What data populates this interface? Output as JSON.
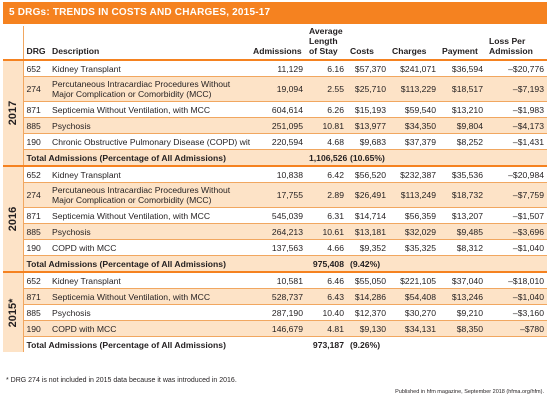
{
  "title": "5 DRGs: TRENDS IN COSTS AND CHARGES, 2015-17",
  "headers": {
    "drg": "DRG",
    "description": "Description",
    "admissions": "Admissions",
    "avg_stay_line1": "Average",
    "avg_stay_line2": "Length",
    "avg_stay_line3": "of Stay",
    "costs": "Costs",
    "charges": "Charges",
    "payment": "Payment",
    "loss_line1": "Loss Per",
    "loss_line2": "Admission"
  },
  "groups": [
    {
      "year": "2017",
      "rows": [
        {
          "drg": "652",
          "description": "Kidney Transplant",
          "admissions": "11,129",
          "stay": "6.16",
          "costs": "$57,370",
          "charges": "$241,071",
          "payment": "$36,594",
          "loss": "–$20,776"
        },
        {
          "drg": "274",
          "description": "Percutaneous Intracardiac Procedures Without Major Complication or Comorbidity (MCC)",
          "admissions": "19,094",
          "stay": "2.55",
          "costs": "$25,710",
          "charges": "$113,229",
          "payment": "$18,517",
          "loss": "–$7,193"
        },
        {
          "drg": "871",
          "description": "Septicemia Without Ventilation, with MCC",
          "admissions": "604,614",
          "stay": "6.26",
          "costs": "$15,193",
          "charges": "$59,540",
          "payment": "$13,210",
          "loss": "–$1,983"
        },
        {
          "drg": "885",
          "description": "Psychosis",
          "admissions": "251,095",
          "stay": "10.81",
          "costs": "$13,977",
          "charges": "$34,350",
          "payment": "$9,804",
          "loss": "–$4,173"
        },
        {
          "drg": "190",
          "description": "Chronic Obstructive Pulmonary Disease (COPD) with MCC",
          "admissions": "220,594",
          "stay": "4.68",
          "costs": "$9,683",
          "charges": "$37,379",
          "payment": "$8,252",
          "loss": "–$1,431"
        }
      ],
      "total_label": "Total Admissions (Percentage of All Admissions)",
      "total_value": "1,106,526",
      "total_pct": "(10.65%)"
    },
    {
      "year": "2016",
      "rows": [
        {
          "drg": "652",
          "description": "Kidney Transplant",
          "admissions": "10,838",
          "stay": "6.42",
          "costs": "$56,520",
          "charges": "$232,387",
          "payment": "$35,536",
          "loss": "–$20,984"
        },
        {
          "drg": "274",
          "description": "Percutaneous Intracardiac Procedures Without Major Complication or Comorbidity (MCC)",
          "admissions": "17,755",
          "stay": "2.89",
          "costs": "$26,491",
          "charges": "$113,249",
          "payment": "$18,732",
          "loss": "–$7,759"
        },
        {
          "drg": "871",
          "description": "Septicemia Without Ventilation, with MCC",
          "admissions": "545,039",
          "stay": "6.31",
          "costs": "$14,714",
          "charges": "$56,359",
          "payment": "$13,207",
          "loss": "–$1,507"
        },
        {
          "drg": "885",
          "description": "Psychosis",
          "admissions": "264,213",
          "stay": "10.61",
          "costs": "$13,181",
          "charges": "$32,029",
          "payment": "$9,485",
          "loss": "–$3,696"
        },
        {
          "drg": "190",
          "description": "COPD with MCC",
          "admissions": "137,563",
          "stay": "4.66",
          "costs": "$9,352",
          "charges": "$35,325",
          "payment": "$8,312",
          "loss": "–$1,040"
        }
      ],
      "total_label": "Total Admissions (Percentage of All Admissions)",
      "total_value": "975,408",
      "total_pct": "(9.42%)"
    },
    {
      "year": "2015*",
      "rows": [
        {
          "drg": "652",
          "description": "Kidney Transplant",
          "admissions": "10,581",
          "stay": "6.46",
          "costs": "$55,050",
          "charges": "$221,105",
          "payment": "$37,040",
          "loss": "–$18,010"
        },
        {
          "drg": "871",
          "description": "Septicemia Without Ventilation, with MCC",
          "admissions": "528,737",
          "stay": "6.43",
          "costs": "$14,286",
          "charges": "$54,408",
          "payment": "$13,246",
          "loss": "–$1,040"
        },
        {
          "drg": "885",
          "description": "Psychosis",
          "admissions": "287,190",
          "stay": "10.40",
          "costs": "$12,370",
          "charges": "$30,270",
          "payment": "$9,210",
          "loss": "–$3,160"
        },
        {
          "drg": "190",
          "description": "COPD with MCC",
          "admissions": "146,679",
          "stay": "4.81",
          "costs": "$9,130",
          "charges": "$34,131",
          "payment": "$8,350",
          "loss": "–$780"
        }
      ],
      "total_label": "Total Admissions (Percentage of All Admissions)",
      "total_value": "973,187",
      "total_pct": "(9.26%)"
    }
  ],
  "footnote": "* DRG 274 is not included in 2015 data because it was introduced in 2016.",
  "published": "Published in hfm magazine, September 2018 (hfma.org/hfm).",
  "colors": {
    "accent": "#f58220",
    "shade": "#fde3c7"
  }
}
